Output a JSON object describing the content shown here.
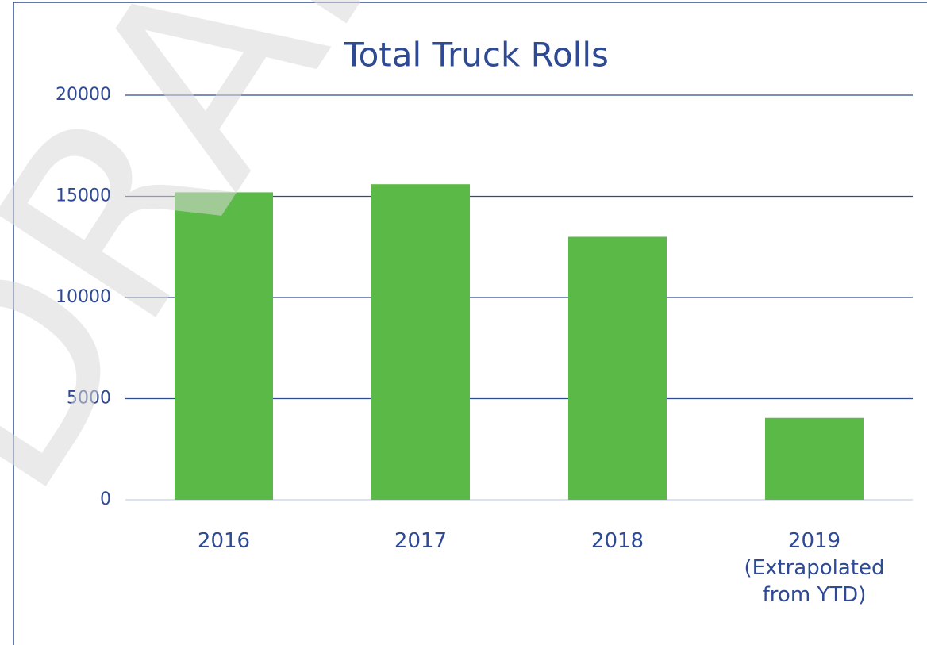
{
  "chart_data": {
    "type": "bar",
    "title": "Total Truck Rolls",
    "categories": [
      "2016",
      "2017",
      "2018",
      "2019 (Extrapolated from YTD)"
    ],
    "values": [
      15200,
      15600,
      13000,
      4050
    ],
    "color": "#5bba47",
    "ylim": [
      0,
      20000
    ],
    "yticks": [
      0,
      5000,
      10000,
      15000,
      20000
    ],
    "grid": true,
    "watermark": "DRAFT"
  }
}
